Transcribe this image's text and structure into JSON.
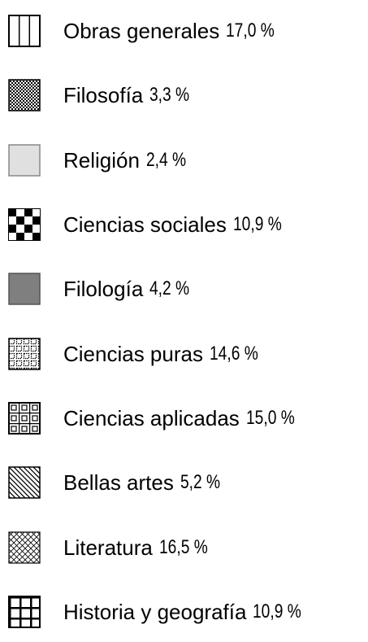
{
  "legend": {
    "items": [
      {
        "label": "Obras generales",
        "value": "17,0 %"
      },
      {
        "label": "Filosofía",
        "value": "3,3 %"
      },
      {
        "label": "Religión",
        "value": "2,4 %"
      },
      {
        "label": "Ciencias sociales",
        "value": "10,9 %"
      },
      {
        "label": "Filología",
        "value": "4,2 %"
      },
      {
        "label": "Ciencias puras",
        "value": "14,6 %"
      },
      {
        "label": "Ciencias aplicadas",
        "value": "15,0 %"
      },
      {
        "label": "Bellas artes",
        "value": "5,2 %"
      },
      {
        "label": "Literatura",
        "value": "16,5 %"
      },
      {
        "label": "Historia y geografía",
        "value": "10,9 %"
      }
    ]
  }
}
